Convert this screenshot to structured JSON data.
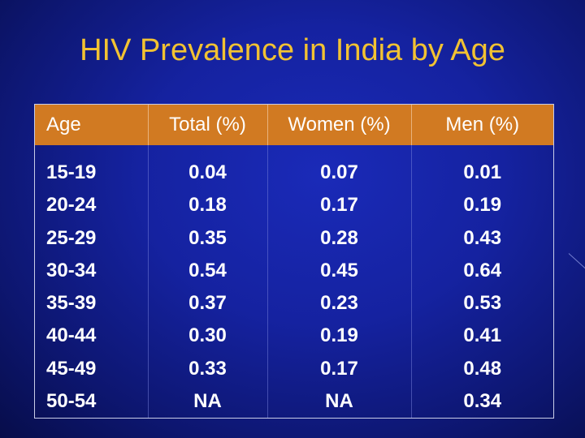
{
  "slide": {
    "title": "HIV Prevalence in India by Age"
  },
  "table": {
    "headers": [
      "Age",
      "Total (%)",
      "Women (%)",
      "Men (%)"
    ],
    "columns": {
      "age": [
        "15-19",
        "20-24",
        "25-29",
        "30-34",
        "35-39",
        "40-44",
        "45-49",
        "50-54"
      ],
      "total": [
        "0.04",
        "0.18",
        "0.35",
        "0.54",
        "0.37",
        "0.30",
        "0.33",
        "NA"
      ],
      "women": [
        "0.07",
        "0.17",
        "0.28",
        "0.45",
        "0.23",
        "0.19",
        "0.17",
        "NA"
      ],
      "men": [
        "0.01",
        "0.19",
        "0.43",
        "0.64",
        "0.53",
        "0.41",
        "0.48",
        "0.34"
      ]
    }
  }
}
